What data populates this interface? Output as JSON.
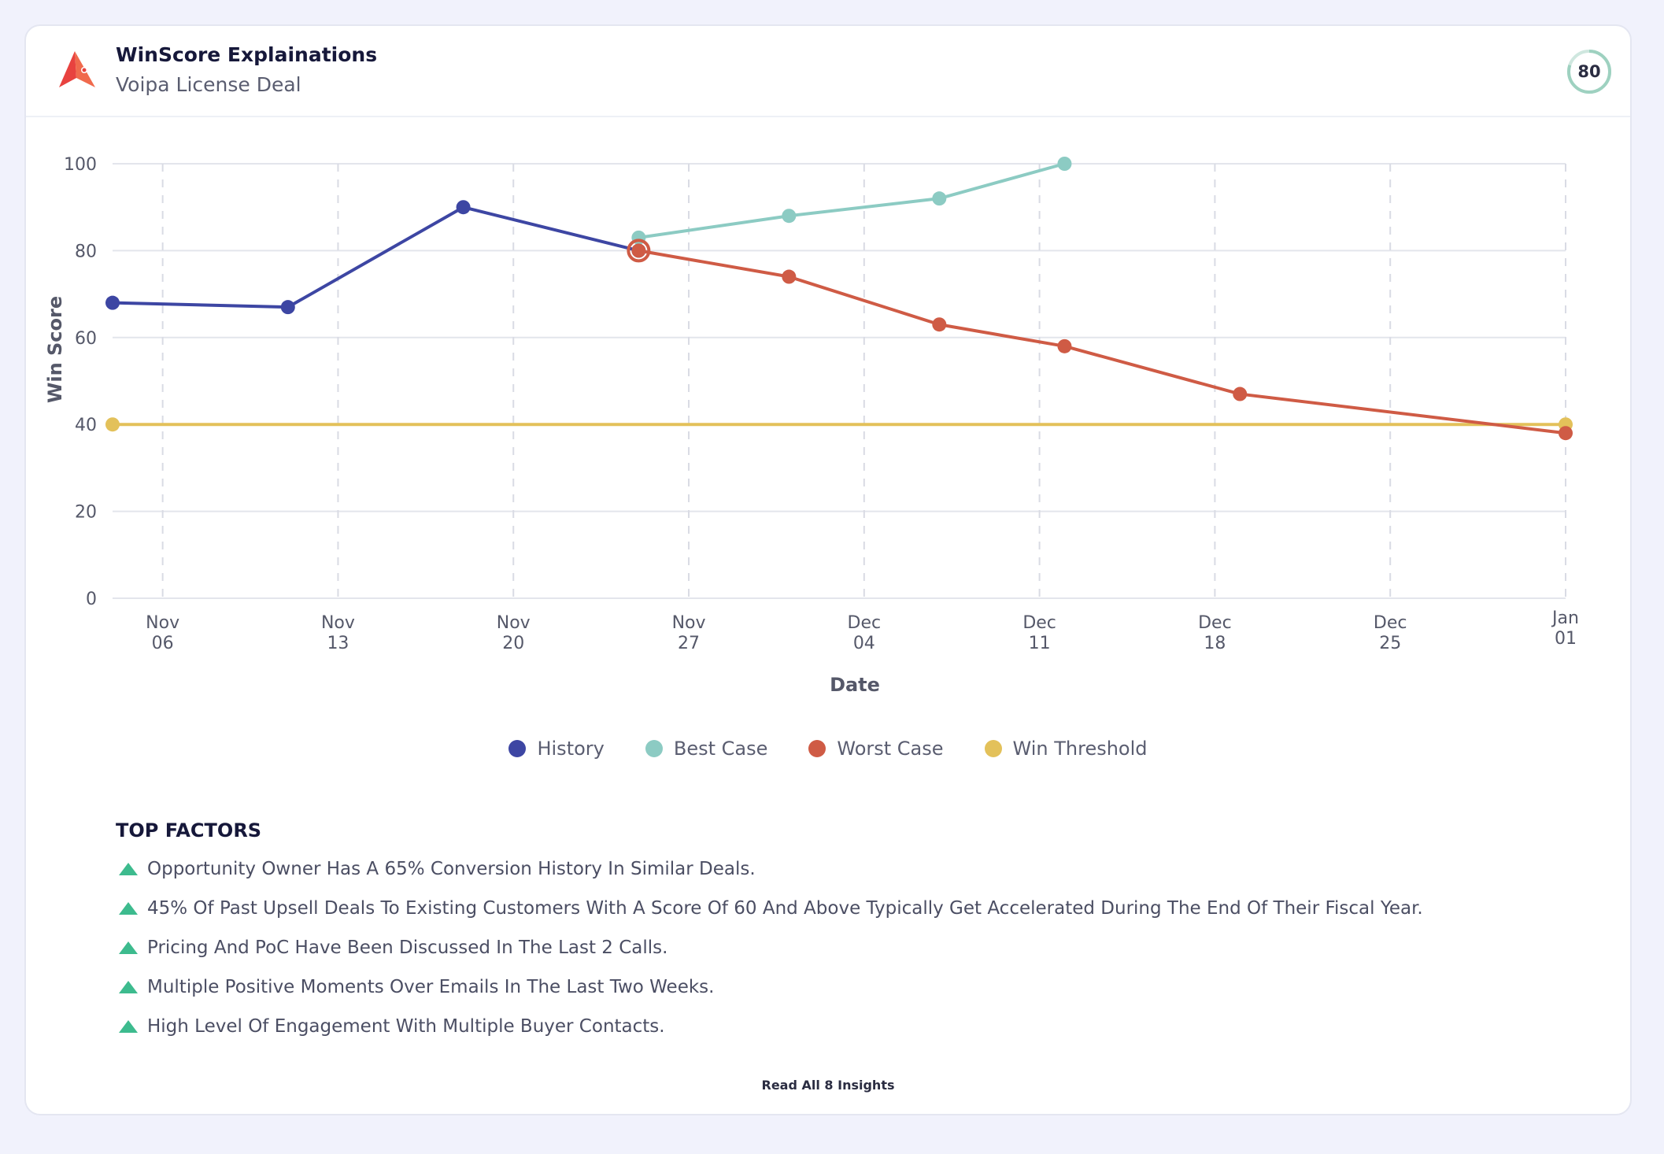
{
  "header": {
    "title": "WinScore Explainations",
    "subtitle": "Voipa License Deal",
    "score": "80",
    "brand_color": "#e8423f"
  },
  "chart_data": {
    "type": "line",
    "xlabel": "Date",
    "ylabel": "Win Score",
    "ylim": [
      0,
      100
    ],
    "y_ticks": [
      "0",
      "20",
      "40",
      "60",
      "80",
      "100"
    ],
    "x_ticks": [
      {
        "top": "Nov",
        "bottom": "06",
        "date": "2023-11-06"
      },
      {
        "top": "Nov",
        "bottom": "13",
        "date": "2023-11-13"
      },
      {
        "top": "Nov",
        "bottom": "20",
        "date": "2023-11-20"
      },
      {
        "top": "Nov",
        "bottom": "27",
        "date": "2023-11-27"
      },
      {
        "top": "Dec",
        "bottom": "04",
        "date": "2023-12-04"
      },
      {
        "top": "Dec",
        "bottom": "11",
        "date": "2023-12-11"
      },
      {
        "top": "Dec",
        "bottom": "18",
        "date": "2023-12-18"
      },
      {
        "top": "Dec",
        "bottom": "25",
        "date": "2023-12-25"
      },
      {
        "top": "Jan",
        "bottom": "01",
        "date": "2024-01-01"
      }
    ],
    "grid": true,
    "legend_position": "bottom-center",
    "series": [
      {
        "name": "History",
        "color": "#3d46a3",
        "points": [
          {
            "x": "2023-11-04",
            "y": 68
          },
          {
            "x": "2023-11-11",
            "y": 67
          },
          {
            "x": "2023-11-18",
            "y": 90
          },
          {
            "x": "2023-11-25",
            "y": 80
          }
        ]
      },
      {
        "name": "Best Case",
        "color": "#8ccbc3",
        "points": [
          {
            "x": "2023-11-25",
            "y": 83
          },
          {
            "x": "2023-12-01",
            "y": 88
          },
          {
            "x": "2023-12-07",
            "y": 92
          },
          {
            "x": "2023-12-12",
            "y": 100
          }
        ]
      },
      {
        "name": "Worst Case",
        "color": "#cf5b45",
        "points": [
          {
            "x": "2023-11-25",
            "y": 80
          },
          {
            "x": "2023-12-01",
            "y": 74
          },
          {
            "x": "2023-12-07",
            "y": 63
          },
          {
            "x": "2023-12-12",
            "y": 58
          },
          {
            "x": "2023-12-19",
            "y": 47
          },
          {
            "x": "2024-01-01",
            "y": 38
          }
        ]
      },
      {
        "name": "Win Threshold",
        "color": "#e3c15a",
        "points": [
          {
            "x": "2023-11-04",
            "y": 40
          },
          {
            "x": "2024-01-01",
            "y": 40
          }
        ]
      }
    ]
  },
  "factors": {
    "title": "TOP FACTORS",
    "items": [
      "Opportunity Owner Has A 65% Conversion History In Similar Deals.",
      "45% Of Past Upsell Deals To Existing Customers With A Score Of 60 And Above Typically Get Accelerated During The End Of Their Fiscal Year.",
      "Pricing And PoC Have Been Discussed In The Last 2 Calls.",
      "Multiple Positive Moments Over Emails In The Last Two Weeks.",
      "High Level Of Engagement With Multiple Buyer Contacts."
    ],
    "icon": "triangle-up-icon",
    "icon_color": "#3dbb8e"
  },
  "footer": {
    "read_all_label": "Read All 8 Insights"
  }
}
